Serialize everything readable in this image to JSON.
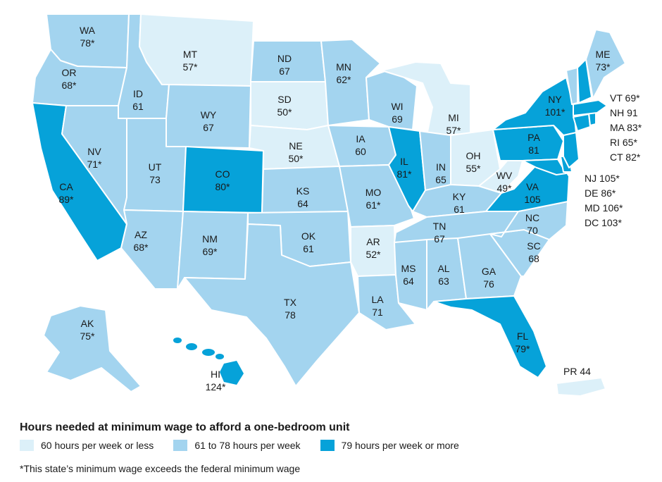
{
  "legend": {
    "title": "Hours needed at minimum wage to afford a one-bedroom unit",
    "items": [
      {
        "label": "60 hours per week or less",
        "color": "#dcf0f9"
      },
      {
        "label": "61 to 78 hours per week",
        "color": "#a3d4ef"
      },
      {
        "label": "79 hours per week or more",
        "color": "#06a2d9"
      }
    ]
  },
  "footnote": "*This state’s minimum wage exceeds the federal minimum wage",
  "states": {
    "WA": {
      "abbr": "WA",
      "value": "78*"
    },
    "OR": {
      "abbr": "OR",
      "value": "68*"
    },
    "CA": {
      "abbr": "CA",
      "value": "89*"
    },
    "ID": {
      "abbr": "ID",
      "value": "61"
    },
    "NV": {
      "abbr": "NV",
      "value": "71*"
    },
    "MT": {
      "abbr": "MT",
      "value": "57*"
    },
    "WY": {
      "abbr": "WY",
      "value": "67"
    },
    "UT": {
      "abbr": "UT",
      "value": "73"
    },
    "AZ": {
      "abbr": "AZ",
      "value": "68*"
    },
    "CO": {
      "abbr": "CO",
      "value": "80*"
    },
    "NM": {
      "abbr": "NM",
      "value": "69*"
    },
    "ND": {
      "abbr": "ND",
      "value": "67"
    },
    "SD": {
      "abbr": "SD",
      "value": "50*"
    },
    "NE": {
      "abbr": "NE",
      "value": "50*"
    },
    "KS": {
      "abbr": "KS",
      "value": "64"
    },
    "OK": {
      "abbr": "OK",
      "value": "61"
    },
    "TX": {
      "abbr": "TX",
      "value": "78"
    },
    "MN": {
      "abbr": "MN",
      "value": "62*"
    },
    "IA": {
      "abbr": "IA",
      "value": "60"
    },
    "MO": {
      "abbr": "MO",
      "value": "61*"
    },
    "AR": {
      "abbr": "AR",
      "value": "52*"
    },
    "LA": {
      "abbr": "LA",
      "value": "71"
    },
    "WI": {
      "abbr": "WI",
      "value": "69"
    },
    "IL": {
      "abbr": "IL",
      "value": "81*"
    },
    "MI": {
      "abbr": "MI",
      "value": "57*"
    },
    "IN": {
      "abbr": "IN",
      "value": "65"
    },
    "OH": {
      "abbr": "OH",
      "value": "55*"
    },
    "KY": {
      "abbr": "KY",
      "value": "61"
    },
    "TN": {
      "abbr": "TN",
      "value": "67"
    },
    "MS": {
      "abbr": "MS",
      "value": "64"
    },
    "AL": {
      "abbr": "AL",
      "value": "63"
    },
    "GA": {
      "abbr": "GA",
      "value": "76"
    },
    "FL": {
      "abbr": "FL",
      "value": "79*"
    },
    "SC": {
      "abbr": "SC",
      "value": "68"
    },
    "NC": {
      "abbr": "NC",
      "value": "70"
    },
    "VA": {
      "abbr": "VA",
      "value": "105"
    },
    "WV": {
      "abbr": "WV",
      "value": "49*"
    },
    "PA": {
      "abbr": "PA",
      "value": "81"
    },
    "NY": {
      "abbr": "NY",
      "value": "101*"
    },
    "ME": {
      "abbr": "ME",
      "value": "73*"
    },
    "AK": {
      "abbr": "AK",
      "value": "75*"
    },
    "HI": {
      "abbr": "HI",
      "value": "124*"
    }
  },
  "side_labels": {
    "VT": "VT 69*",
    "NH": "NH 91",
    "MA": "MA 83*",
    "RI": "RI 65*",
    "CT": "CT 82*",
    "NJ": "NJ 105*",
    "DE": "DE 86*",
    "MD": "MD 106*",
    "DC": "DC 103*",
    "PR": "PR 44"
  }
}
